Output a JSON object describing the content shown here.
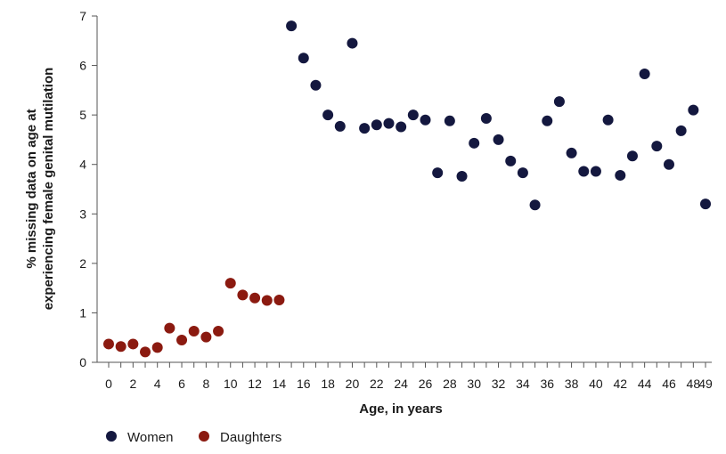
{
  "chart_data": {
    "type": "scatter",
    "title": "",
    "xlabel": "Age, in years",
    "ylabel_lines": [
      "% missing data on age at",
      "experiencing female genital mutilation"
    ],
    "xlim": [
      0,
      49
    ],
    "ylim": [
      0,
      7
    ],
    "grid": false,
    "legend_position": "bottom-left",
    "x_ticks": [
      0,
      2,
      4,
      6,
      8,
      10,
      12,
      14,
      16,
      18,
      20,
      22,
      24,
      26,
      28,
      30,
      32,
      34,
      36,
      38,
      40,
      42,
      44,
      46,
      48,
      49
    ],
    "y_ticks": [
      0,
      1,
      2,
      3,
      4,
      5,
      6,
      7
    ],
    "series": [
      {
        "name": "Women",
        "color": "#14183f",
        "points": [
          [
            15,
            6.8
          ],
          [
            16,
            6.15
          ],
          [
            17,
            5.6
          ],
          [
            18,
            5.0
          ],
          [
            19,
            4.77
          ],
          [
            20,
            6.45
          ],
          [
            21,
            4.73
          ],
          [
            22,
            4.8
          ],
          [
            23,
            4.83
          ],
          [
            24,
            4.76
          ],
          [
            25,
            5.0
          ],
          [
            26,
            4.9
          ],
          [
            27,
            3.83
          ],
          [
            28,
            4.88
          ],
          [
            29,
            3.76
          ],
          [
            30,
            4.43
          ],
          [
            31,
            4.93
          ],
          [
            32,
            4.5
          ],
          [
            33,
            4.07
          ],
          [
            34,
            3.83
          ],
          [
            35,
            3.18
          ],
          [
            36,
            4.88
          ],
          [
            37,
            5.27
          ],
          [
            38,
            4.23
          ],
          [
            39,
            3.86
          ],
          [
            40,
            3.86
          ],
          [
            41,
            4.9
          ],
          [
            42,
            3.78
          ],
          [
            43,
            4.17
          ],
          [
            44,
            5.83
          ],
          [
            45,
            4.37
          ],
          [
            46,
            4.0
          ],
          [
            47,
            4.68
          ],
          [
            48,
            5.1
          ],
          [
            49,
            3.2
          ]
        ]
      },
      {
        "name": "Daughters",
        "color": "#8b1a10",
        "points": [
          [
            0,
            0.37
          ],
          [
            1,
            0.32
          ],
          [
            2,
            0.37
          ],
          [
            3,
            0.21
          ],
          [
            4,
            0.3
          ],
          [
            5,
            0.69
          ],
          [
            6,
            0.45
          ],
          [
            7,
            0.63
          ],
          [
            8,
            0.51
          ],
          [
            9,
            0.63
          ],
          [
            10,
            1.6
          ],
          [
            11,
            1.36
          ],
          [
            12,
            1.3
          ],
          [
            13,
            1.25
          ],
          [
            14,
            1.26
          ]
        ]
      }
    ]
  }
}
